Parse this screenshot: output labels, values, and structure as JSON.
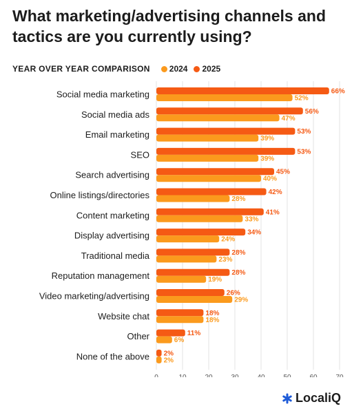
{
  "chart_data": {
    "type": "bar",
    "orientation": "horizontal",
    "title": "What marketing/advertising channels and tactics are you currently using?",
    "legend_title": "YEAR OVER YEAR COMPARISON",
    "legend_placement": "top-left",
    "categories": [
      "Social media marketing",
      "Social media ads",
      "Email marketing",
      "SEO",
      "Search advertising",
      "Online listings/directories",
      "Content marketing",
      "Display advertising",
      "Traditional media",
      "Reputation management",
      "Video marketing/advertising",
      "Website chat",
      "Other",
      "None of the above"
    ],
    "series": [
      {
        "name": "2025",
        "color": "#f55a14",
        "values": [
          66,
          56,
          53,
          53,
          45,
          42,
          41,
          34,
          28,
          28,
          26,
          18,
          11,
          2
        ]
      },
      {
        "name": "2024",
        "color": "#fb9a1d",
        "values": [
          52,
          47,
          39,
          39,
          40,
          28,
          33,
          24,
          23,
          19,
          29,
          18,
          6,
          2
        ]
      }
    ],
    "value_suffix": "%",
    "xlim": [
      0,
      70
    ],
    "xticks": [
      0,
      10,
      20,
      30,
      40,
      50,
      60,
      70
    ],
    "grid": true
  },
  "legend_order": [
    "2024",
    "2025"
  ],
  "brand": {
    "logo_text": "LocaliQ",
    "icon": "asterisk-logo-icon",
    "color": "#1e5bd8"
  }
}
